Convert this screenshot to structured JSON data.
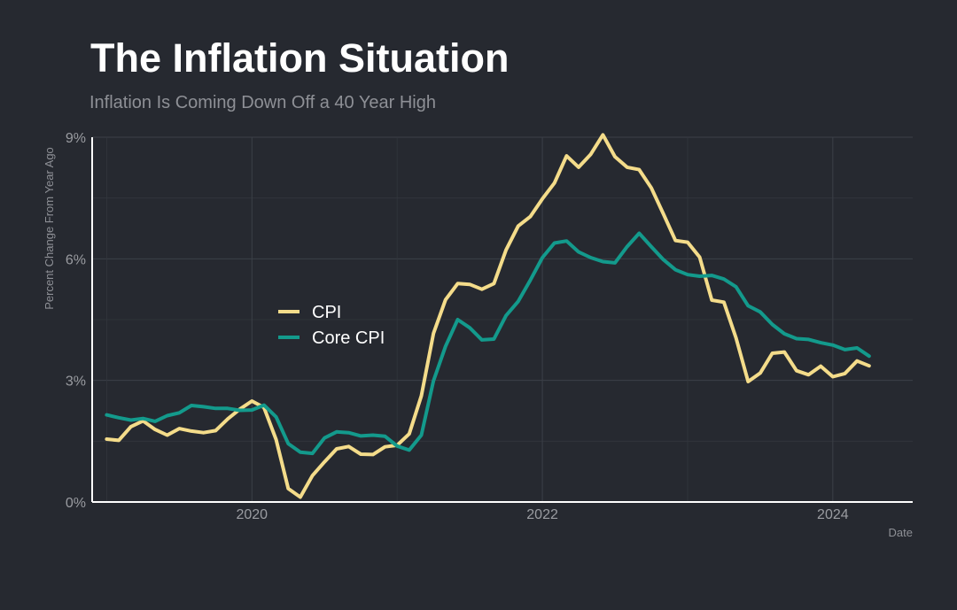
{
  "title": "The Inflation Situation",
  "subtitle": "Inflation Is Coming Down Off a 40 Year High",
  "chart_data": {
    "type": "line",
    "xlabel": "Date",
    "ylabel": "Percent Change From Year Ago",
    "xlim": [
      2018.9,
      2024.55
    ],
    "ylim": [
      0,
      9
    ],
    "xticks": [
      {
        "value": 2020,
        "label": "2020"
      },
      {
        "value": 2022,
        "label": "2022"
      },
      {
        "value": 2024,
        "label": "2024"
      }
    ],
    "yticks": [
      {
        "value": 0,
        "label": "0%"
      },
      {
        "value": 3,
        "label": "3%"
      },
      {
        "value": 6,
        "label": "6%"
      },
      {
        "value": 9,
        "label": "9%"
      }
    ],
    "grid": true,
    "legend_position": "center-left",
    "series": [
      {
        "name": "CPI",
        "color": "#f4dc8a",
        "x": [
          "2019-01",
          "2019-02",
          "2019-03",
          "2019-04",
          "2019-05",
          "2019-06",
          "2019-07",
          "2019-08",
          "2019-09",
          "2019-10",
          "2019-11",
          "2019-12",
          "2020-01",
          "2020-02",
          "2020-03",
          "2020-04",
          "2020-05",
          "2020-06",
          "2020-07",
          "2020-08",
          "2020-09",
          "2020-10",
          "2020-11",
          "2020-12",
          "2021-01",
          "2021-02",
          "2021-03",
          "2021-04",
          "2021-05",
          "2021-06",
          "2021-07",
          "2021-08",
          "2021-09",
          "2021-10",
          "2021-11",
          "2021-12",
          "2022-01",
          "2022-02",
          "2022-03",
          "2022-04",
          "2022-05",
          "2022-06",
          "2022-07",
          "2022-08",
          "2022-09",
          "2022-10",
          "2022-11",
          "2022-12",
          "2023-01",
          "2023-02",
          "2023-03",
          "2023-04",
          "2023-05",
          "2023-06",
          "2023-07",
          "2023-08",
          "2023-09",
          "2023-10",
          "2023-11",
          "2023-12",
          "2024-01",
          "2024-02",
          "2024-03",
          "2024-04"
        ],
        "values": [
          1.55,
          1.52,
          1.86,
          2.0,
          1.79,
          1.65,
          1.81,
          1.75,
          1.71,
          1.76,
          2.05,
          2.29,
          2.49,
          2.33,
          1.54,
          0.33,
          0.12,
          0.65,
          0.99,
          1.31,
          1.37,
          1.18,
          1.17,
          1.36,
          1.4,
          1.68,
          2.62,
          4.16,
          4.99,
          5.39,
          5.37,
          5.25,
          5.39,
          6.22,
          6.81,
          7.04,
          7.48,
          7.87,
          8.54,
          8.26,
          8.58,
          9.06,
          8.52,
          8.26,
          8.2,
          7.75,
          7.11,
          6.45,
          6.41,
          6.04,
          4.98,
          4.93,
          4.05,
          2.97,
          3.18,
          3.67,
          3.7,
          3.24,
          3.14,
          3.35,
          3.09,
          3.17,
          3.48,
          3.36
        ]
      },
      {
        "name": "Core CPI",
        "color": "#139a8c",
        "x": [
          "2019-01",
          "2019-02",
          "2019-03",
          "2019-04",
          "2019-05",
          "2019-06",
          "2019-07",
          "2019-08",
          "2019-09",
          "2019-10",
          "2019-11",
          "2019-12",
          "2020-01",
          "2020-02",
          "2020-03",
          "2020-04",
          "2020-05",
          "2020-06",
          "2020-07",
          "2020-08",
          "2020-09",
          "2020-10",
          "2020-11",
          "2020-12",
          "2021-01",
          "2021-02",
          "2021-03",
          "2021-04",
          "2021-05",
          "2021-06",
          "2021-07",
          "2021-08",
          "2021-09",
          "2021-10",
          "2021-11",
          "2021-12",
          "2022-01",
          "2022-02",
          "2022-03",
          "2022-04",
          "2022-05",
          "2022-06",
          "2022-07",
          "2022-08",
          "2022-09",
          "2022-10",
          "2022-11",
          "2022-12",
          "2023-01",
          "2023-02",
          "2023-03",
          "2023-04",
          "2023-05",
          "2023-06",
          "2023-07",
          "2023-08",
          "2023-09",
          "2023-10",
          "2023-11",
          "2023-12",
          "2024-01",
          "2024-02",
          "2024-03",
          "2024-04"
        ],
        "values": [
          2.15,
          2.08,
          2.02,
          2.06,
          1.99,
          2.13,
          2.2,
          2.38,
          2.35,
          2.31,
          2.31,
          2.26,
          2.27,
          2.39,
          2.1,
          1.44,
          1.23,
          1.2,
          1.58,
          1.73,
          1.71,
          1.63,
          1.65,
          1.62,
          1.38,
          1.28,
          1.65,
          2.99,
          3.84,
          4.5,
          4.3,
          4.0,
          4.02,
          4.6,
          4.95,
          5.47,
          6.03,
          6.39,
          6.44,
          6.17,
          6.03,
          5.93,
          5.9,
          6.3,
          6.63,
          6.3,
          5.98,
          5.73,
          5.61,
          5.57,
          5.59,
          5.5,
          5.31,
          4.84,
          4.69,
          4.38,
          4.15,
          4.03,
          4.01,
          3.93,
          3.87,
          3.76,
          3.8,
          3.6
        ]
      }
    ]
  }
}
